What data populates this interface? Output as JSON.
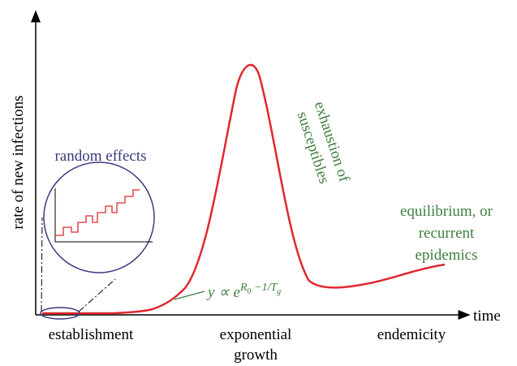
{
  "axes": {
    "y_label": "rate of new infections",
    "x_label": "time"
  },
  "annotations": {
    "random_effects": "random effects",
    "exhaustion": [
      "exhaustion of",
      "susceptibles"
    ],
    "equilibrium": [
      "equilibrium, or",
      "recurrent",
      "epidemics"
    ],
    "formula": {
      "base": "y ∝ e",
      "exp_r": "R",
      "exp_r_sub": "0",
      "exp_mid": " −1/T",
      "exp_t_sub": "g"
    }
  },
  "phases": {
    "establishment": "establishment",
    "exponential": [
      "exponential",
      "growth"
    ],
    "endemicity": "endemicity"
  }
}
